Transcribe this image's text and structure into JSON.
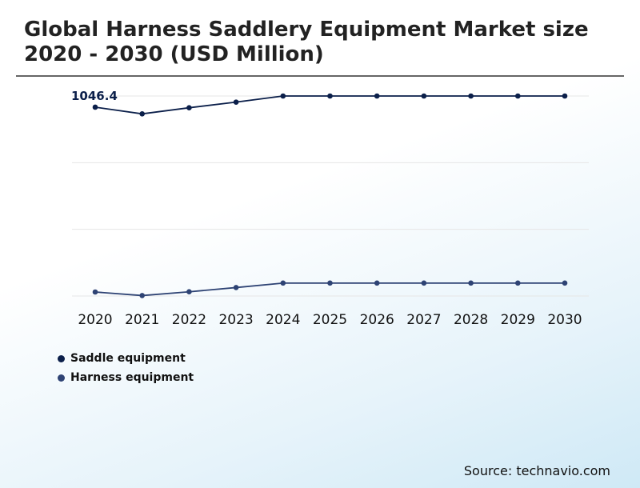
{
  "chart_data": {
    "type": "line",
    "title": "Global Harness Saddlery Equipment Market size 2020 - 2030 (USD Million)",
    "categories": [
      "2020",
      "2021",
      "2022",
      "2023",
      "2024",
      "2025",
      "2026",
      "2027",
      "2028",
      "2029",
      "2030"
    ],
    "series": [
      {
        "name": "Saddle equipment",
        "color": "#0b1f4a",
        "values": [
          1046.4,
          1018,
          1044,
          1068,
          1094,
          1094,
          1094,
          1094,
          1094,
          1094,
          1094
        ]
      },
      {
        "name": "Harness equipment",
        "color": "#2e4374",
        "values": [
          260,
          245,
          261,
          279,
          298,
          298,
          298,
          298,
          298,
          298,
          298
        ]
      }
    ],
    "annotations": [
      {
        "series": 0,
        "index": 0,
        "text": "1046.4"
      }
    ],
    "xlabel": "",
    "ylabel": "",
    "ylim": [
      243,
      1094
    ],
    "yaxis_visible": false,
    "grid": "horizontal",
    "legend_position": "bottom-left"
  },
  "source": "Source: technavio.com"
}
